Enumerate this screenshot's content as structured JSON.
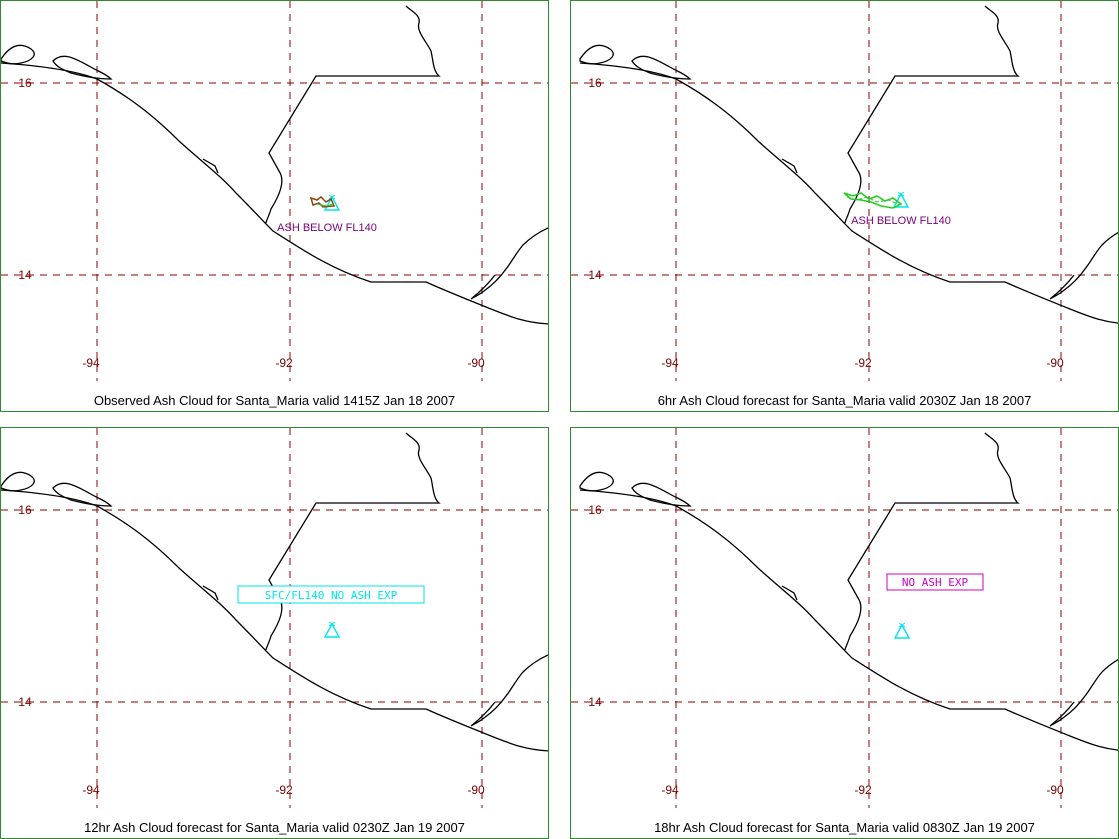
{
  "colors": {
    "frame": "#2e8b2e",
    "grid": "#8b0000",
    "tick_label": "#7a0000",
    "coast": "#000000",
    "volcano": "#00e5e5",
    "ash_label": "#7a007a",
    "obs_ash": "#8b4513",
    "fcst_ash": "#22cc22",
    "no_ash_box_1": "#00e5e5",
    "no_ash_box_2": "#cc00cc"
  },
  "map": {
    "lon_ticks": [
      "-94",
      "-92",
      "-90"
    ],
    "lat_ticks": [
      "16",
      "14"
    ],
    "volcano_icon": "volcano-triangle-icon"
  },
  "panels": [
    {
      "caption": "Observed Ash Cloud for Santa_Maria valid 1415Z Jan 18 2007",
      "label": "ASH BELOW FL140",
      "ash": "observed"
    },
    {
      "caption": "6hr Ash Cloud forecast for Santa_Maria valid 2030Z Jan 18 2007",
      "label": "ASH BELOW FL140",
      "ash": "forecast"
    },
    {
      "caption": "12hr Ash Cloud forecast for Santa_Maria valid 0230Z Jan 19 2007",
      "label": "SFC/FL140 NO ASH EXP",
      "ash": "none"
    },
    {
      "caption": "18hr Ash Cloud forecast for Santa_Maria valid 0830Z Jan 19 2007",
      "label": "NO ASH EXP",
      "ash": "none"
    }
  ]
}
